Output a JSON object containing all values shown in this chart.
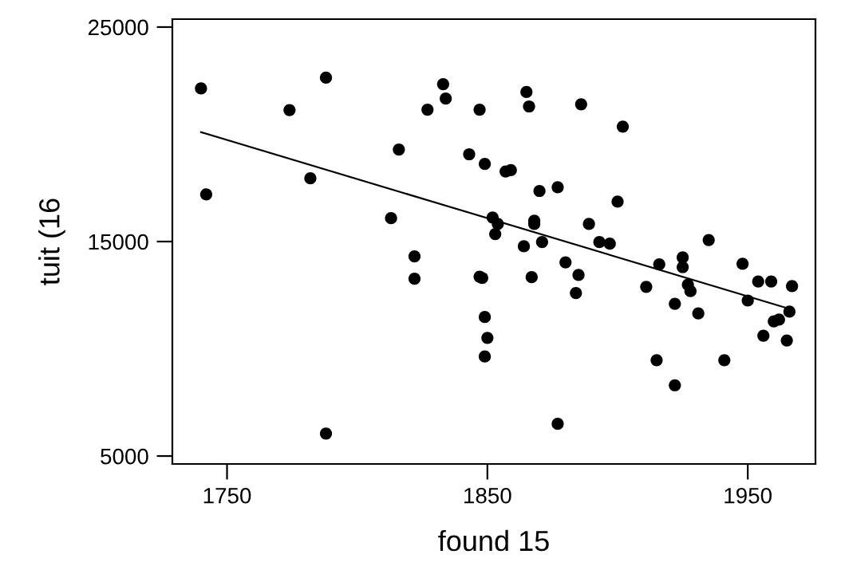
{
  "chart_data": {
    "type": "scatter",
    "xlabel": "found 15",
    "ylabel": "tuit (16",
    "xlim": [
      1729,
      1976
    ],
    "ylim": [
      4630,
      25370
    ],
    "xticks": [
      1750,
      1850,
      1950
    ],
    "yticks": [
      5000,
      15000,
      25000
    ],
    "grid": false,
    "legend": false,
    "marker": "circle",
    "series": [
      {
        "color": "#000000",
        "x": [
          1740,
          1742,
          1774,
          1788,
          1782,
          1788,
          1816,
          1813,
          1822,
          1822,
          1827,
          1833,
          1834,
          1843,
          1847,
          1849,
          1847,
          1848,
          1849,
          1850,
          1849,
          1852,
          1854,
          1853,
          1865,
          1866,
          1857,
          1859,
          1870,
          1877,
          1886,
          1902,
          1900,
          1868,
          1868,
          1864,
          1871,
          1889,
          1893,
          1897,
          1880,
          1867,
          1885,
          1884,
          1877,
          1911,
          1916,
          1915,
          1922,
          1922,
          1925,
          1925,
          1927,
          1928,
          1931,
          1935,
          1941,
          1948,
          1950,
          1954,
          1959,
          1967,
          1966,
          1960,
          1962,
          1956,
          1965
        ],
        "values": [
          22140,
          17200,
          21130,
          22640,
          17950,
          6050,
          19290,
          16090,
          14310,
          13270,
          21150,
          22340,
          21670,
          19070,
          21150,
          18620,
          13360,
          13300,
          11480,
          10510,
          9640,
          16120,
          15820,
          15350,
          21970,
          21300,
          18270,
          18330,
          17360,
          17530,
          21400,
          20360,
          16860,
          15970,
          15820,
          14780,
          14980,
          15820,
          14980,
          14900,
          14030,
          13340,
          13440,
          12600,
          6500,
          12890,
          13940,
          9470,
          8300,
          12100,
          14260,
          13810,
          12990,
          12690,
          11650,
          15070,
          9470,
          13960,
          12250,
          13140,
          13140,
          12920,
          11730,
          11280,
          11360,
          10610,
          10390
        ]
      },
      {
        "type": "line",
        "color": "#000000",
        "marker": "none",
        "line_style": "solid",
        "x": [
          1740,
          1965
        ],
        "values": [
          20100,
          11900
        ]
      }
    ]
  }
}
